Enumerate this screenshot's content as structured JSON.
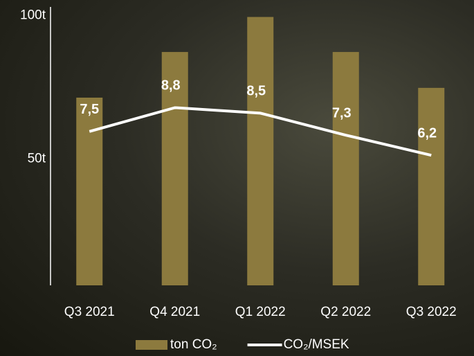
{
  "chart_data": {
    "type": "bar-line",
    "categories": [
      "Q3 2021",
      "Q4 2021",
      "Q1 2022",
      "Q2 2022",
      "Q3 2022"
    ],
    "series": [
      {
        "name": "ton CO₂",
        "type": "bar",
        "color": "#8c7a3e",
        "values": [
          71.4,
          87.3,
          99.5,
          87.3,
          74.8
        ]
      },
      {
        "name": "CO₂/MSEK",
        "type": "line",
        "axis": "y2",
        "color": "#ffffff",
        "values": [
          7.5,
          8.8,
          8.5,
          7.3,
          6.2
        ],
        "value_labels": [
          "7,5",
          "8,8",
          "8,5",
          "7,3",
          "6,2"
        ]
      }
    ],
    "ylim": [
      6,
      103
    ],
    "yticks": [
      {
        "value": 50,
        "label": "50t"
      },
      {
        "value": 100,
        "label": "100t"
      }
    ],
    "y2lim": [
      -0.9,
      14.3
    ],
    "legend": "bottom"
  }
}
